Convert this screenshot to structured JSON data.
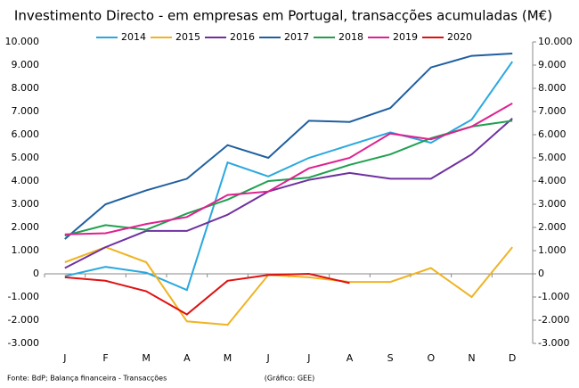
{
  "chart_data": {
    "type": "line",
    "title": "Investimento Directo - em empresas em Portugal, transacções acumuladas (M€)",
    "categories": [
      "J",
      "F",
      "M",
      "A",
      "M",
      "J",
      "J",
      "A",
      "S",
      "O",
      "N",
      "D"
    ],
    "series": [
      {
        "name": "2014",
        "color": "#29a8e0",
        "values": [
          -100,
          300,
          50,
          -700,
          4800,
          4200,
          5000,
          5550,
          6100,
          5650,
          6650,
          9150
        ]
      },
      {
        "name": "2015",
        "color": "#f0b323",
        "values": [
          500,
          1150,
          500,
          -2050,
          -2200,
          -50,
          -150,
          -350,
          -350,
          250,
          -1000,
          1150
        ]
      },
      {
        "name": "2016",
        "color": "#7030a0",
        "values": [
          250,
          1150,
          1850,
          1850,
          2550,
          3550,
          4050,
          4350,
          4100,
          4100,
          5150,
          6700
        ]
      },
      {
        "name": "2017",
        "color": "#1f5fa0",
        "values": [
          1500,
          3000,
          3600,
          4100,
          5550,
          5000,
          6600,
          6550,
          7150,
          8900,
          9400,
          9500
        ]
      },
      {
        "name": "2018",
        "color": "#1fa050",
        "values": [
          1650,
          2100,
          1900,
          2600,
          3200,
          4000,
          4150,
          4700,
          5150,
          5850,
          6350,
          6600
        ]
      },
      {
        "name": "2019",
        "color": "#e02090",
        "values": [
          1700,
          1750,
          2150,
          2450,
          3400,
          3550,
          4550,
          5000,
          6050,
          5800,
          6350,
          7350
        ]
      },
      {
        "name": "2020",
        "color": "#e01010",
        "values": [
          -150,
          -300,
          -750,
          -1750,
          -300,
          -50,
          0,
          -400,
          null,
          null,
          null,
          null
        ]
      }
    ],
    "ylim": [
      -3000,
      10000
    ],
    "yticks": [
      {
        "value": -3000,
        "label": "-3.000"
      },
      {
        "value": -2000,
        "label": "-2.000"
      },
      {
        "value": -1000,
        "label": "-1.000"
      },
      0,
      {
        "value": 1000,
        "label": "1.000"
      },
      {
        "value": 2000,
        "label": "2.000"
      },
      {
        "value": 3000,
        "label": "3.000"
      },
      {
        "value": 4000,
        "label": "4.000"
      },
      {
        "value": 5000,
        "label": "5.000"
      },
      {
        "value": 6000,
        "label": "6.000"
      },
      {
        "value": 7000,
        "label": "7.000"
      },
      {
        "value": 8000,
        "label": "8.000"
      },
      {
        "value": 9000,
        "label": "9.000"
      },
      {
        "value": 10000,
        "label": "10.000"
      }
    ],
    "y2lim": [
      -3000,
      10000
    ],
    "y2ticks": [
      {
        "value": -3000,
        "label": "-3.000"
      },
      {
        "value": -2000,
        "label": "-2.000"
      },
      {
        "value": -1000,
        "label": "-1.000"
      },
      0,
      {
        "value": 1000,
        "label": "1.000"
      },
      {
        "value": 2000,
        "label": "2.000"
      },
      {
        "value": 3000,
        "label": "3.000"
      },
      {
        "value": 4000,
        "label": "4.000"
      },
      {
        "value": 5000,
        "label": "5.000"
      },
      {
        "value": 6000,
        "label": "6.000"
      },
      {
        "value": 7000,
        "label": "7.000"
      },
      {
        "value": 8000,
        "label": "8.000"
      },
      {
        "value": 9000,
        "label": "9.000"
      },
      {
        "value": 10000,
        "label": "10.000"
      }
    ],
    "grid": false,
    "legend": "top",
    "source": "Fonte: BdP; Balança financeira - Transacções",
    "credit": "(Gráfico: GEE)"
  }
}
